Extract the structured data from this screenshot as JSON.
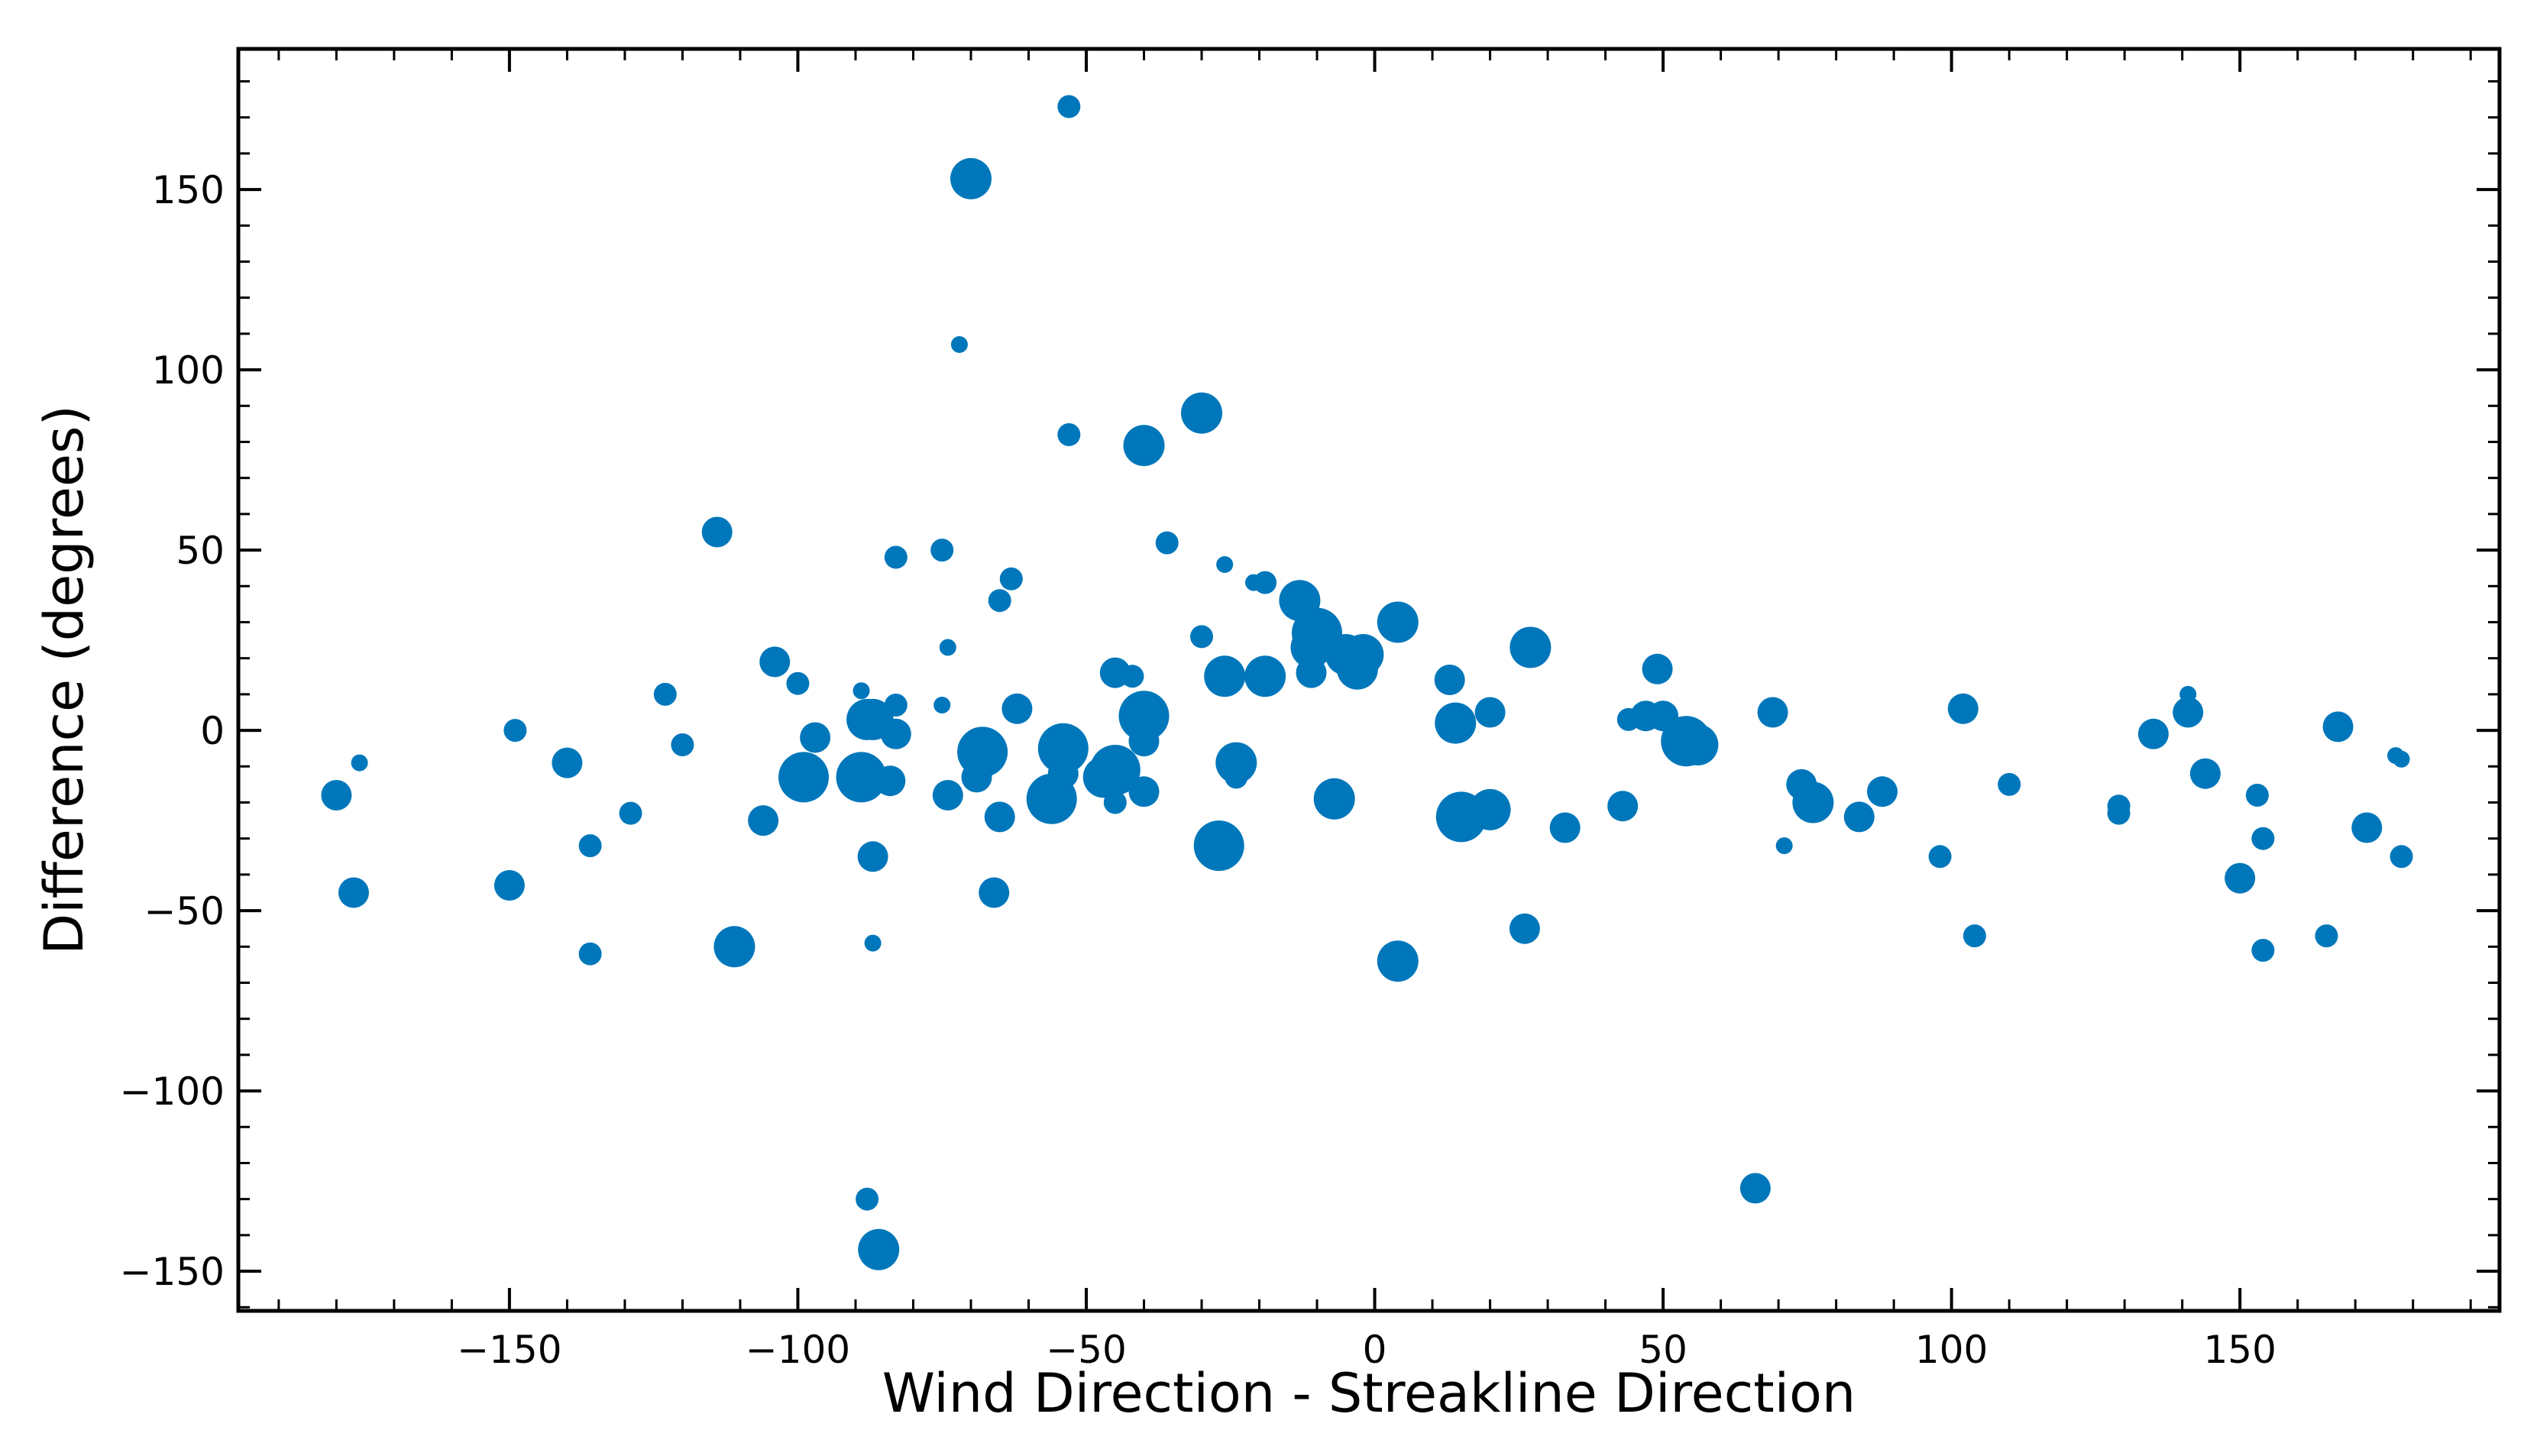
{
  "chart_data": {
    "type": "scatter",
    "xlabel": "Wind Direction - Streakline Direction",
    "ylabel": "Difference (degrees)",
    "xlim": [
      -197,
      195
    ],
    "ylim": [
      -161,
      189
    ],
    "xticks": [
      -150,
      -100,
      -50,
      0,
      50,
      100,
      150
    ],
    "yticks": [
      -150,
      -100,
      -50,
      0,
      50,
      100,
      150
    ],
    "x_tick_labels": [
      "−150",
      "−100",
      "−50",
      "0",
      "50",
      "100",
      "150"
    ],
    "y_tick_labels": [
      "−150",
      "−100",
      "−50",
      "0",
      "50",
      "100",
      "150"
    ],
    "grid": false,
    "legend": "none",
    "marker_color": "#0077bb",
    "points": [
      {
        "x": -53,
        "y": 173,
        "s": 2
      },
      {
        "x": -70,
        "y": 153,
        "s": 4
      },
      {
        "x": -72,
        "y": 107,
        "s": 1
      },
      {
        "x": -30,
        "y": 88,
        "s": 4
      },
      {
        "x": -53,
        "y": 82,
        "s": 2
      },
      {
        "x": -40,
        "y": 79,
        "s": 4
      },
      {
        "x": -114,
        "y": 55,
        "s": 3
      },
      {
        "x": -36,
        "y": 52,
        "s": 2
      },
      {
        "x": -75,
        "y": 50,
        "s": 2
      },
      {
        "x": -83,
        "y": 48,
        "s": 2
      },
      {
        "x": -26,
        "y": 46,
        "s": 1
      },
      {
        "x": -63,
        "y": 42,
        "s": 2
      },
      {
        "x": -21,
        "y": 41,
        "s": 1
      },
      {
        "x": -19,
        "y": 41,
        "s": 2
      },
      {
        "x": -65,
        "y": 36,
        "s": 2
      },
      {
        "x": -13,
        "y": 36,
        "s": 4
      },
      {
        "x": 4,
        "y": 30,
        "s": 4
      },
      {
        "x": -10,
        "y": 27,
        "s": 5
      },
      {
        "x": -30,
        "y": 26,
        "s": 2
      },
      {
        "x": -11,
        "y": 23,
        "s": 4
      },
      {
        "x": -74,
        "y": 23,
        "s": 1
      },
      {
        "x": 27,
        "y": 23,
        "s": 4
      },
      {
        "x": -5,
        "y": 21,
        "s": 4
      },
      {
        "x": -2,
        "y": 21,
        "s": 4
      },
      {
        "x": -104,
        "y": 19,
        "s": 3
      },
      {
        "x": -3,
        "y": 17,
        "s": 4
      },
      {
        "x": 49,
        "y": 17,
        "s": 3
      },
      {
        "x": -45,
        "y": 16,
        "s": 3
      },
      {
        "x": -11,
        "y": 16,
        "s": 3
      },
      {
        "x": -26,
        "y": 15,
        "s": 4
      },
      {
        "x": -19,
        "y": 15,
        "s": 4
      },
      {
        "x": -42,
        "y": 15,
        "s": 2
      },
      {
        "x": 13,
        "y": 14,
        "s": 3
      },
      {
        "x": -100,
        "y": 13,
        "s": 2
      },
      {
        "x": -89,
        "y": 11,
        "s": 1
      },
      {
        "x": -123,
        "y": 10,
        "s": 2
      },
      {
        "x": 141,
        "y": 10,
        "s": 1
      },
      {
        "x": -83,
        "y": 7,
        "s": 2
      },
      {
        "x": -75,
        "y": 7,
        "s": 1
      },
      {
        "x": 102,
        "y": 6,
        "s": 3
      },
      {
        "x": -62,
        "y": 6,
        "s": 3
      },
      {
        "x": 20,
        "y": 5,
        "s": 3
      },
      {
        "x": 69,
        "y": 5,
        "s": 3
      },
      {
        "x": 141,
        "y": 5,
        "s": 3
      },
      {
        "x": -40,
        "y": 4,
        "s": 5
      },
      {
        "x": -87,
        "y": 3,
        "s": 4
      },
      {
        "x": 44,
        "y": 3,
        "s": 2
      },
      {
        "x": 47,
        "y": 4,
        "s": 3
      },
      {
        "x": 50,
        "y": 4,
        "s": 3
      },
      {
        "x": -88,
        "y": 3,
        "s": 4
      },
      {
        "x": 14,
        "y": 2,
        "s": 4
      },
      {
        "x": 167,
        "y": 1,
        "s": 3
      },
      {
        "x": -149,
        "y": 0,
        "s": 2
      },
      {
        "x": -83,
        "y": -1,
        "s": 3
      },
      {
        "x": 135,
        "y": -1,
        "s": 3
      },
      {
        "x": -97,
        "y": -2,
        "s": 3
      },
      {
        "x": 54,
        "y": -3,
        "s": 5
      },
      {
        "x": 56,
        "y": -4,
        "s": 4
      },
      {
        "x": -40,
        "y": -3,
        "s": 3
      },
      {
        "x": -120,
        "y": -4,
        "s": 2
      },
      {
        "x": -54,
        "y": -5,
        "s": 5
      },
      {
        "x": -68,
        "y": -6,
        "s": 5
      },
      {
        "x": 177,
        "y": -7,
        "s": 1
      },
      {
        "x": 178,
        "y": -8,
        "s": 1
      },
      {
        "x": -176,
        "y": -9,
        "s": 1
      },
      {
        "x": -24,
        "y": -9,
        "s": 4
      },
      {
        "x": -140,
        "y": -9,
        "s": 3
      },
      {
        "x": -45,
        "y": -11,
        "s": 5
      },
      {
        "x": -88,
        "y": -11,
        "s": 3
      },
      {
        "x": -54,
        "y": -12,
        "s": 3
      },
      {
        "x": -99,
        "y": -13,
        "s": 5
      },
      {
        "x": -89,
        "y": -13,
        "s": 5
      },
      {
        "x": -69,
        "y": -13,
        "s": 3
      },
      {
        "x": -24,
        "y": -13,
        "s": 2
      },
      {
        "x": 144,
        "y": -12,
        "s": 3
      },
      {
        "x": -47,
        "y": -13,
        "s": 4
      },
      {
        "x": -84,
        "y": -14,
        "s": 3
      },
      {
        "x": 110,
        "y": -15,
        "s": 2
      },
      {
        "x": 74,
        "y": -15,
        "s": 3
      },
      {
        "x": -40,
        "y": -17,
        "s": 3
      },
      {
        "x": 88,
        "y": -17,
        "s": 3
      },
      {
        "x": -74,
        "y": -18,
        "s": 3
      },
      {
        "x": -180,
        "y": -18,
        "s": 3
      },
      {
        "x": 153,
        "y": -18,
        "s": 2
      },
      {
        "x": -56,
        "y": -19,
        "s": 5
      },
      {
        "x": -7,
        "y": -19,
        "s": 4
      },
      {
        "x": 76,
        "y": -20,
        "s": 4
      },
      {
        "x": -45,
        "y": -20,
        "s": 2
      },
      {
        "x": 43,
        "y": -21,
        "s": 3
      },
      {
        "x": 129,
        "y": -21,
        "s": 2
      },
      {
        "x": 20,
        "y": -22,
        "s": 4
      },
      {
        "x": -129,
        "y": -23,
        "s": 2
      },
      {
        "x": 129,
        "y": -23,
        "s": 2
      },
      {
        "x": -65,
        "y": -24,
        "s": 3
      },
      {
        "x": 15,
        "y": -24,
        "s": 5
      },
      {
        "x": 84,
        "y": -24,
        "s": 3
      },
      {
        "x": -106,
        "y": -25,
        "s": 3
      },
      {
        "x": 33,
        "y": -27,
        "s": 3
      },
      {
        "x": 172,
        "y": -27,
        "s": 3
      },
      {
        "x": 154,
        "y": -30,
        "s": 2
      },
      {
        "x": -27,
        "y": -32,
        "s": 5
      },
      {
        "x": -136,
        "y": -32,
        "s": 2
      },
      {
        "x": 71,
        "y": -32,
        "s": 1
      },
      {
        "x": -87,
        "y": -35,
        "s": 3
      },
      {
        "x": 98,
        "y": -35,
        "s": 2
      },
      {
        "x": 178,
        "y": -35,
        "s": 2
      },
      {
        "x": 150,
        "y": -41,
        "s": 3
      },
      {
        "x": -150,
        "y": -43,
        "s": 3
      },
      {
        "x": -177,
        "y": -45,
        "s": 3
      },
      {
        "x": -66,
        "y": -45,
        "s": 3
      },
      {
        "x": 26,
        "y": -55,
        "s": 3
      },
      {
        "x": 104,
        "y": -57,
        "s": 2
      },
      {
        "x": 165,
        "y": -57,
        "s": 2
      },
      {
        "x": -111,
        "y": -60,
        "s": 4
      },
      {
        "x": -87,
        "y": -59,
        "s": 1
      },
      {
        "x": -136,
        "y": -62,
        "s": 2
      },
      {
        "x": 154,
        "y": -61,
        "s": 2
      },
      {
        "x": 4,
        "y": -64,
        "s": 4
      },
      {
        "x": 66,
        "y": -127,
        "s": 3
      },
      {
        "x": -88,
        "y": -130,
        "s": 2
      },
      {
        "x": -86,
        "y": -144,
        "s": 4
      }
    ]
  }
}
